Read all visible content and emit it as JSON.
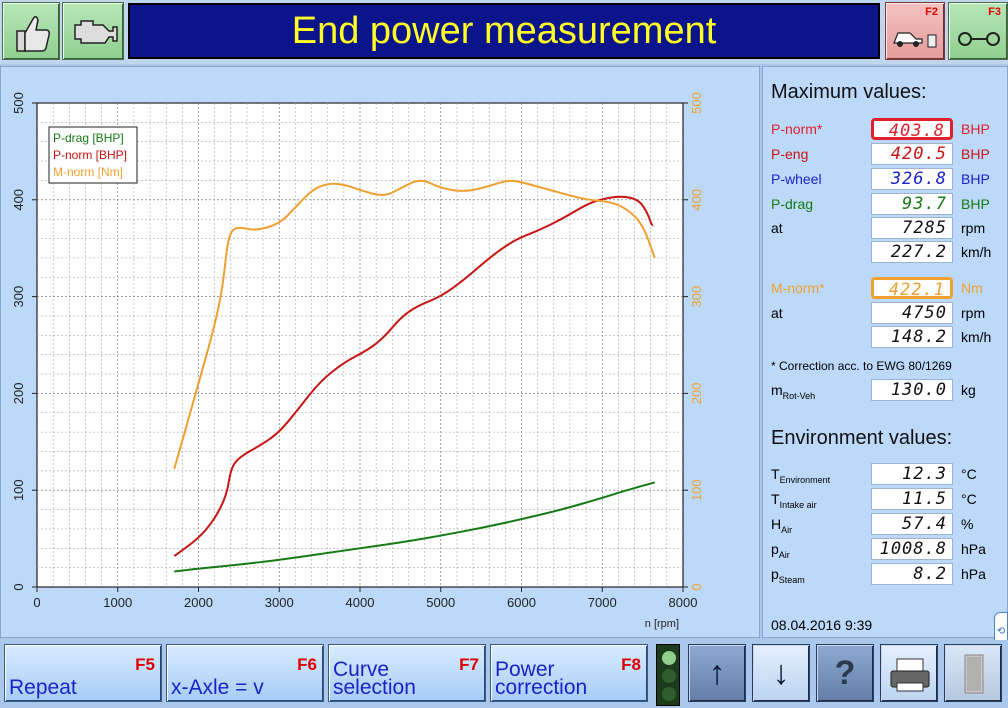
{
  "header": {
    "title": "End power measurement",
    "f2_key": "F2",
    "f3_key": "F3"
  },
  "chart_data": {
    "type": "line",
    "xlabel": "n [rpm]",
    "xlim": [
      0,
      8000
    ],
    "x_ticks": [
      "0",
      "1000",
      "2000",
      "3000",
      "4000",
      "5000",
      "6000",
      "7000",
      "8000"
    ],
    "ylim_left": [
      0,
      500
    ],
    "y_ticks_left": [
      "0",
      "100",
      "200",
      "300",
      "400",
      "500"
    ],
    "ylim_right": [
      0,
      500
    ],
    "y_ticks_right": [
      "0",
      "100",
      "200",
      "300",
      "400",
      "500"
    ],
    "grid": true,
    "legend": "top-left",
    "series": [
      {
        "name": "P-drag [BHP]",
        "color": "#157a15",
        "axis": "left",
        "x": [
          1700,
          2000,
          2500,
          3000,
          3500,
          4000,
          4500,
          5000,
          5500,
          6000,
          6500,
          7000,
          7300,
          7650
        ],
        "y": [
          16,
          19,
          23,
          28,
          34,
          40,
          46,
          53,
          61,
          70,
          80,
          92,
          100,
          108
        ]
      },
      {
        "name": "P-norm [BHP]",
        "color": "#c81414",
        "axis": "left",
        "x": [
          1700,
          2000,
          2200,
          2350,
          2400,
          2500,
          2800,
          3000,
          3200,
          3500,
          3800,
          4100,
          4300,
          4500,
          4700,
          5000,
          5300,
          5600,
          5900,
          6200,
          6500,
          6800,
          7000,
          7250,
          7450,
          7550,
          7620
        ],
        "y": [
          32,
          50,
          70,
          95,
          122,
          134,
          148,
          160,
          180,
          212,
          232,
          245,
          258,
          278,
          290,
          300,
          318,
          340,
          358,
          368,
          380,
          395,
          401,
          404,
          400,
          388,
          373
        ]
      },
      {
        "name": "M-norm [Nm]",
        "color": "#f0a030",
        "axis": "right",
        "x": [
          1700,
          2000,
          2200,
          2300,
          2350,
          2400,
          2500,
          2700,
          3000,
          3200,
          3400,
          3600,
          3800,
          4000,
          4300,
          4500,
          4750,
          5000,
          5300,
          5600,
          5850,
          6100,
          6400,
          6800,
          7100,
          7300,
          7500,
          7650
        ],
        "y": [
          122,
          210,
          270,
          310,
          350,
          368,
          372,
          368,
          375,
          392,
          410,
          417,
          416,
          410,
          403,
          412,
          422,
          412,
          408,
          414,
          421,
          416,
          409,
          400,
          398,
          391,
          375,
          340
        ]
      }
    ]
  },
  "max_values": {
    "title": "Maximum values:",
    "p_norm": {
      "label": "P-norm*",
      "value": "403.8",
      "unit": "BHP"
    },
    "p_eng": {
      "label": "P-eng",
      "value": "420.5",
      "unit": "BHP"
    },
    "p_wheel": {
      "label": "P-wheel",
      "value": "326.8",
      "unit": "BHP"
    },
    "p_drag": {
      "label": "P-drag",
      "value": "93.7",
      "unit": "BHP"
    },
    "at_rpm": {
      "label": "at",
      "value": "7285",
      "unit": "rpm"
    },
    "at_kmh": {
      "value": "227.2",
      "unit": "km/h"
    },
    "m_norm": {
      "label": "M-norm*",
      "value": "422.1",
      "unit": "Nm"
    },
    "m_at_rpm": {
      "label": "at",
      "value": "4750",
      "unit": "rpm"
    },
    "m_at_kmh": {
      "value": "148.2",
      "unit": "km/h"
    },
    "footnote": "* Correction acc. to EWG 80/1269",
    "m_rot": {
      "label": "m",
      "sub": "Rot-Veh",
      "value": "130.0",
      "unit": "kg"
    }
  },
  "environment": {
    "title": "Environment values:",
    "rows": [
      {
        "label": "T",
        "sub": "Environment",
        "value": "12.3",
        "unit": "°C"
      },
      {
        "label": "T",
        "sub": "Intake air",
        "value": "11.5",
        "unit": "°C"
      },
      {
        "label": "H",
        "sub": "Air",
        "value": "57.4",
        "unit": "%"
      },
      {
        "label": "p",
        "sub": "Air",
        "value": "1008.8",
        "unit": "hPa"
      },
      {
        "label": "p",
        "sub": "Steam",
        "value": "8.2",
        "unit": "hPa"
      }
    ]
  },
  "datetime": "08.04.2016  9:39",
  "footer": {
    "repeat": {
      "label": "Repeat",
      "key": "F5"
    },
    "xaxle": {
      "label": "x-Axle = v",
      "key": "F6"
    },
    "curve": {
      "label": "Curve\nselection",
      "key": "F7"
    },
    "power": {
      "label": "Power\ncorrection",
      "key": "F8"
    }
  },
  "colors": {
    "title_bg": "#0b148a",
    "title_fg": "#ffff24",
    "p_norm": "#e0202c",
    "p_eng": "#c81414",
    "p_wheel": "#1a22c8",
    "p_drag": "#157a15",
    "m_norm": "#f0a030"
  },
  "icons": [
    "thumbs-up-icon",
    "engine-icon",
    "car-dyno-icon",
    "link-icon",
    "arrow-up-icon",
    "arrow-down-icon",
    "help-icon",
    "printer-icon",
    "exit-door-icon"
  ]
}
